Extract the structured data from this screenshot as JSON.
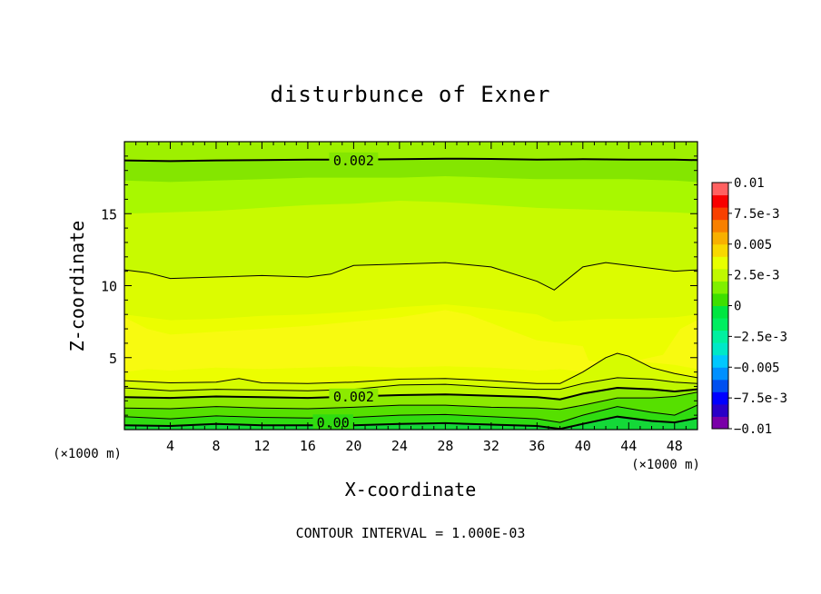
{
  "chart_data": {
    "type": "heatmap",
    "title": "disturbunce of Exner",
    "xlabel": "X-coordinate",
    "ylabel": "Z-coordinate",
    "x_unit_left": "(×1000 m)",
    "x_unit_right": "(×1000 m)",
    "xlim": [
      0,
      50
    ],
    "ylim": [
      0,
      20
    ],
    "x_ticks": [
      4,
      8,
      12,
      16,
      20,
      24,
      28,
      32,
      36,
      40,
      44,
      48
    ],
    "y_ticks": [
      5,
      10,
      15
    ],
    "footer": "CONTOUR INTERVAL = 1.000E-03",
    "colorbar": {
      "labels": [
        "0.01",
        "7.5e-3",
        "0.005",
        "2.5e-3",
        "0",
        "−2.5e-3",
        "−0.005",
        "−7.5e-3",
        "−0.01"
      ],
      "label_values": [
        0.01,
        0.0075,
        0.005,
        0.0025,
        0,
        -0.0025,
        -0.005,
        -0.0075,
        -0.01
      ],
      "min": -0.01,
      "max": 0.01,
      "colors": [
        "#7a00a8",
        "#2a00c8",
        "#0000ff",
        "#0050f0",
        "#0090ff",
        "#00c8ff",
        "#00e8c8",
        "#00f0a0",
        "#00ee60",
        "#00e640",
        "#3ee000",
        "#80f000",
        "#c0f800",
        "#e8ff00",
        "#f8d800",
        "#f8b000",
        "#f88000",
        "#f84000",
        "#f80000",
        "#ff6060"
      ]
    },
    "contour_labels": [
      {
        "text": "0.002",
        "x": 20.0,
        "z": 18.75
      },
      {
        "text": "0.002",
        "x": 20.0,
        "z": 2.35
      },
      {
        "text": "0.00",
        "x": 18.2,
        "z": 0.55
      }
    ],
    "bands": [
      {
        "color": "#9ef000",
        "x": [
          0,
          4,
          8,
          12,
          16,
          20,
          24,
          28,
          32,
          36,
          40,
          44,
          48,
          50
        ],
        "z": [
          20,
          20,
          20,
          20,
          20,
          20,
          20,
          20,
          20,
          20,
          20,
          20,
          20,
          20
        ]
      },
      {
        "color": "#84e600",
        "x": [
          0,
          4,
          8,
          12,
          16,
          20,
          24,
          28,
          32,
          36,
          40,
          44,
          48,
          50
        ],
        "z": [
          18.7,
          18.65,
          18.7,
          18.72,
          18.75,
          18.76,
          18.78,
          18.82,
          18.8,
          18.75,
          18.78,
          18.76,
          18.75,
          18.72
        ]
      },
      {
        "color": "#a8f800",
        "x": [
          0,
          4,
          8,
          12,
          16,
          20,
          24,
          28,
          32,
          36,
          40,
          44,
          48,
          50
        ],
        "z": [
          17.3,
          17.2,
          17.3,
          17.4,
          17.5,
          17.5,
          17.5,
          17.6,
          17.5,
          17.4,
          17.4,
          17.4,
          17.3,
          17.2
        ]
      },
      {
        "color": "#c8fa00",
        "x": [
          0,
          4,
          8,
          12,
          16,
          20,
          24,
          28,
          32,
          36,
          40,
          44,
          48,
          50
        ],
        "z": [
          15.0,
          15.1,
          15.2,
          15.4,
          15.6,
          15.7,
          15.9,
          15.8,
          15.6,
          15.4,
          15.3,
          15.2,
          15.1,
          15.0
        ]
      },
      {
        "color": "#dcfc00",
        "x": [
          0,
          2,
          4,
          8,
          12,
          16,
          18,
          20,
          24,
          28,
          32,
          36,
          37.5,
          40,
          42,
          44,
          48,
          50
        ],
        "z": [
          11.1,
          10.9,
          10.5,
          10.6,
          10.7,
          10.6,
          10.8,
          11.4,
          11.5,
          11.6,
          11.3,
          10.3,
          9.7,
          11.3,
          11.6,
          11.4,
          11.0,
          11.1
        ]
      },
      {
        "color": "#ecfe00",
        "x": [
          0,
          2,
          4,
          8,
          12,
          16,
          20,
          24,
          28,
          32,
          36,
          37.5,
          40,
          42,
          44,
          48,
          50
        ],
        "z": [
          8.0,
          7.8,
          7.6,
          7.7,
          7.9,
          8.0,
          8.2,
          8.5,
          8.7,
          8.4,
          8.0,
          7.5,
          7.6,
          7.7,
          7.7,
          7.8,
          8.0
        ]
      },
      {
        "color": "#f8fa10",
        "x": [
          0,
          2,
          4,
          8,
          12,
          16,
          20,
          24,
          28,
          30,
          32,
          36,
          38,
          40,
          40.5,
          43,
          47,
          48.5,
          50
        ],
        "z": [
          7.8,
          7.0,
          6.6,
          6.8,
          7.0,
          7.2,
          7.5,
          7.8,
          8.3,
          8.0,
          7.4,
          6.2,
          6.0,
          5.8,
          4.8,
          4.5,
          5.2,
          7.0,
          7.6
        ]
      },
      {
        "color": "#ecfe00",
        "x": [
          0,
          2,
          4,
          8,
          12,
          16,
          20,
          24,
          28,
          32,
          36,
          38,
          40,
          44,
          48,
          50
        ],
        "z": [
          4.0,
          4.2,
          4.1,
          4.3,
          4.2,
          4.3,
          4.4,
          4.3,
          4.4,
          4.3,
          4.1,
          4.2,
          4.0,
          4.8,
          4.5,
          4.2
        ]
      },
      {
        "color": "#d6fc00",
        "x": [
          0,
          4,
          8,
          10,
          12,
          16,
          20,
          24,
          28,
          32,
          36,
          38,
          40,
          42,
          43,
          44,
          46,
          48,
          50
        ],
        "z": [
          3.4,
          3.25,
          3.3,
          3.55,
          3.25,
          3.2,
          3.3,
          3.5,
          3.55,
          3.4,
          3.2,
          3.2,
          4.0,
          5.0,
          5.3,
          5.1,
          4.3,
          3.9,
          3.6
        ]
      },
      {
        "color": "#c0f600",
        "x": [
          0,
          4,
          8,
          12,
          16,
          20,
          24,
          28,
          32,
          36,
          38,
          40,
          43,
          46,
          48,
          50
        ],
        "z": [
          2.9,
          2.7,
          2.8,
          2.75,
          2.7,
          2.8,
          3.1,
          3.15,
          2.95,
          2.8,
          2.8,
          3.2,
          3.6,
          3.5,
          3.3,
          3.2
        ]
      },
      {
        "color": "#8cea00",
        "x": [
          0,
          4,
          8,
          12,
          16,
          20,
          24,
          28,
          32,
          36,
          38,
          40,
          43,
          46,
          48,
          50
        ],
        "z": [
          2.25,
          2.2,
          2.3,
          2.25,
          2.2,
          2.3,
          2.4,
          2.45,
          2.35,
          2.25,
          2.1,
          2.5,
          2.9,
          2.8,
          2.65,
          2.8
        ]
      },
      {
        "color": "#56e000",
        "x": [
          0,
          4,
          8,
          12,
          16,
          20,
          24,
          28,
          32,
          36,
          38,
          40,
          43,
          46,
          48,
          50
        ],
        "z": [
          1.5,
          1.45,
          1.6,
          1.5,
          1.45,
          1.55,
          1.7,
          1.7,
          1.55,
          1.5,
          1.4,
          1.7,
          2.2,
          2.2,
          2.3,
          2.6
        ]
      },
      {
        "color": "#30dc10",
        "x": [
          0,
          4,
          8,
          12,
          16,
          20,
          24,
          28,
          32,
          36,
          38,
          40,
          43,
          46,
          48,
          50
        ],
        "z": [
          0.9,
          0.75,
          0.95,
          0.85,
          0.8,
          0.85,
          1.0,
          1.05,
          0.9,
          0.75,
          0.5,
          1.0,
          1.6,
          1.2,
          1.0,
          1.7
        ]
      },
      {
        "color": "#14d838",
        "x": [
          0,
          4,
          8,
          12,
          16,
          20,
          24,
          28,
          32,
          36,
          38,
          40,
          43,
          46,
          48,
          50
        ],
        "z": [
          0.3,
          0.25,
          0.4,
          0.3,
          0.3,
          0.3,
          0.4,
          0.45,
          0.35,
          0.25,
          0.05,
          0.4,
          0.9,
          0.6,
          0.5,
          0.8
        ]
      }
    ],
    "contours": [
      {
        "weight": "thick",
        "x": [
          0,
          4,
          8,
          12,
          16,
          20,
          24,
          28,
          32,
          36,
          40,
          44,
          48,
          50
        ],
        "z": [
          18.7,
          18.65,
          18.7,
          18.72,
          18.75,
          18.76,
          18.78,
          18.82,
          18.8,
          18.75,
          18.78,
          18.76,
          18.75,
          18.72
        ]
      },
      {
        "weight": "thin",
        "x": [
          0,
          2,
          4,
          8,
          12,
          16,
          18,
          20,
          24,
          28,
          32,
          36,
          37.5,
          40,
          42,
          44,
          48,
          50
        ],
        "z": [
          11.1,
          10.9,
          10.5,
          10.6,
          10.7,
          10.6,
          10.8,
          11.4,
          11.5,
          11.6,
          11.3,
          10.3,
          9.7,
          11.3,
          11.6,
          11.4,
          11.0,
          11.1
        ]
      },
      {
        "weight": "thin",
        "x": [
          0,
          4,
          8,
          10,
          12,
          16,
          20,
          24,
          28,
          32,
          36,
          38,
          40,
          42,
          43,
          44,
          46,
          48,
          50
        ],
        "z": [
          3.4,
          3.25,
          3.3,
          3.55,
          3.25,
          3.2,
          3.3,
          3.5,
          3.55,
          3.4,
          3.2,
          3.2,
          4.0,
          5.0,
          5.3,
          5.1,
          4.3,
          3.9,
          3.6
        ]
      },
      {
        "weight": "thin",
        "x": [
          0,
          4,
          8,
          12,
          16,
          20,
          24,
          28,
          32,
          36,
          38,
          40,
          43,
          46,
          48,
          50
        ],
        "z": [
          2.9,
          2.7,
          2.8,
          2.75,
          2.7,
          2.8,
          3.1,
          3.15,
          2.95,
          2.8,
          2.8,
          3.2,
          3.6,
          3.5,
          3.3,
          3.2
        ]
      },
      {
        "weight": "thick",
        "x": [
          0,
          4,
          8,
          12,
          16,
          20,
          24,
          28,
          32,
          36,
          38,
          40,
          43,
          46,
          48,
          50
        ],
        "z": [
          2.25,
          2.2,
          2.3,
          2.25,
          2.2,
          2.3,
          2.4,
          2.45,
          2.35,
          2.25,
          2.1,
          2.5,
          2.9,
          2.8,
          2.65,
          2.8
        ]
      },
      {
        "weight": "thin",
        "x": [
          0,
          4,
          8,
          12,
          16,
          20,
          24,
          28,
          32,
          36,
          38,
          40,
          43,
          46,
          48,
          50
        ],
        "z": [
          1.5,
          1.45,
          1.6,
          1.5,
          1.45,
          1.55,
          1.7,
          1.7,
          1.55,
          1.5,
          1.4,
          1.7,
          2.2,
          2.2,
          2.3,
          2.6
        ]
      },
      {
        "weight": "thin",
        "x": [
          0,
          4,
          8,
          12,
          16,
          20,
          24,
          28,
          32,
          36,
          38,
          40,
          43,
          46,
          48,
          50
        ],
        "z": [
          0.9,
          0.75,
          0.95,
          0.85,
          0.8,
          0.85,
          1.0,
          1.05,
          0.9,
          0.75,
          0.5,
          1.0,
          1.6,
          1.2,
          1.0,
          1.7
        ]
      },
      {
        "weight": "thick",
        "x": [
          0,
          4,
          8,
          12,
          16,
          20,
          24,
          28,
          32,
          36,
          38,
          40,
          43,
          46,
          48,
          50
        ],
        "z": [
          0.3,
          0.25,
          0.4,
          0.3,
          0.3,
          0.3,
          0.4,
          0.45,
          0.35,
          0.25,
          0.05,
          0.4,
          0.9,
          0.6,
          0.5,
          0.8
        ]
      }
    ]
  }
}
